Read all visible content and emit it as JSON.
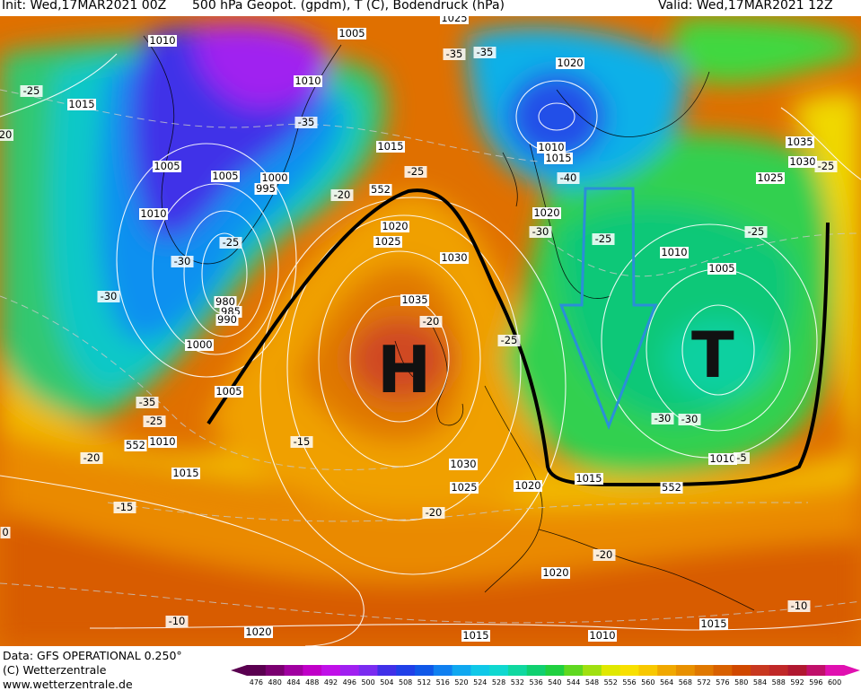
{
  "header": {
    "init_label": "Init: Wed,17MAR2021 00Z",
    "title": "500 hPa Geopot. (gpdm), T (C), Bodendruck (hPa)",
    "valid_label": "Valid: Wed,17MAR2021 12Z"
  },
  "footer": {
    "data_source": "Data: GFS OPERATIONAL 0.250°",
    "copyright": "(C) Wetterzentrale",
    "website": "www.wetterzentrale.de"
  },
  "annotations": {
    "high_letter": "H",
    "low_letter": "T"
  },
  "legend": {
    "ticks": [
      "476",
      "480",
      "484",
      "488",
      "492",
      "496",
      "500",
      "504",
      "508",
      "512",
      "516",
      "520",
      "524",
      "528",
      "532",
      "536",
      "540",
      "544",
      "548",
      "552",
      "556",
      "560",
      "564",
      "568",
      "572",
      "576",
      "580",
      "584",
      "588",
      "592",
      "596",
      "600"
    ],
    "colors": [
      "#5a0050",
      "#7a0070",
      "#a000a0",
      "#c000c8",
      "#c010e8",
      "#a020f0",
      "#7a2cf0",
      "#4030e8",
      "#2040e8",
      "#1058e8",
      "#1080f0",
      "#10a8f0",
      "#10c8e8",
      "#10d8d0",
      "#10d8a0",
      "#10d070",
      "#20d040",
      "#60d820",
      "#a0e010",
      "#e0e800",
      "#f8e000",
      "#f8c800",
      "#f0a800",
      "#e89000",
      "#e07800",
      "#d86000",
      "#d04800",
      "#c83820",
      "#c02828",
      "#b01830",
      "#c0106a",
      "#e010b0"
    ]
  },
  "isobar_labels": [
    {
      "text": "1010"
    },
    {
      "text": "1005"
    },
    {
      "text": "1010"
    },
    {
      "text": "1025"
    },
    {
      "text": "1020"
    },
    {
      "text": "1015"
    },
    {
      "text": "1005"
    },
    {
      "text": "1010"
    },
    {
      "text": "1005"
    },
    {
      "text": "1000"
    },
    {
      "text": "995"
    },
    {
      "text": "1010"
    },
    {
      "text": "1015"
    },
    {
      "text": "1010"
    },
    {
      "text": "1015"
    },
    {
      "text": "1035"
    },
    {
      "text": "1030"
    },
    {
      "text": "1025"
    },
    {
      "text": "1020"
    },
    {
      "text": "1025"
    },
    {
      "text": "1020"
    },
    {
      "text": "1030"
    },
    {
      "text": "1035"
    },
    {
      "text": "1010"
    },
    {
      "text": "1005"
    },
    {
      "text": "980"
    },
    {
      "text": "985"
    },
    {
      "text": "990"
    },
    {
      "text": "1000"
    },
    {
      "text": "1005"
    },
    {
      "text": "1010"
    },
    {
      "text": "1015"
    },
    {
      "text": "1030"
    },
    {
      "text": "1025"
    },
    {
      "text": "1020"
    },
    {
      "text": "1015"
    },
    {
      "text": "1010"
    },
    {
      "text": "1020"
    },
    {
      "text": "1020"
    },
    {
      "text": "1015"
    },
    {
      "text": "1015"
    },
    {
      "text": "1010"
    },
    {
      "text": "1020"
    }
  ],
  "temperature_labels": [
    {
      "text": "-25"
    },
    {
      "text": "-35"
    },
    {
      "text": "-35"
    },
    {
      "text": "-25"
    },
    {
      "text": "-40"
    },
    {
      "text": "-30"
    },
    {
      "text": "-25"
    },
    {
      "text": "-20"
    },
    {
      "text": "-25"
    },
    {
      "text": "-30"
    },
    {
      "text": "-30"
    },
    {
      "text": "-35"
    },
    {
      "text": "-25"
    },
    {
      "text": "-20"
    },
    {
      "text": "-15"
    },
    {
      "text": "-20"
    },
    {
      "text": "-25"
    },
    {
      "text": "-15"
    },
    {
      "text": "-25"
    },
    {
      "text": "-30"
    },
    {
      "text": "-20"
    },
    {
      "text": "-20"
    },
    {
      "text": "-10"
    },
    {
      "text": "-10"
    },
    {
      "text": "20"
    },
    {
      "text": "-25"
    },
    {
      "text": "-35"
    },
    {
      "text": "-30"
    },
    {
      "text": "-5"
    },
    {
      "text": "0"
    }
  ],
  "geopotential_labels": [
    {
      "text": "552"
    },
    {
      "text": "552"
    },
    {
      "text": "552"
    }
  ]
}
